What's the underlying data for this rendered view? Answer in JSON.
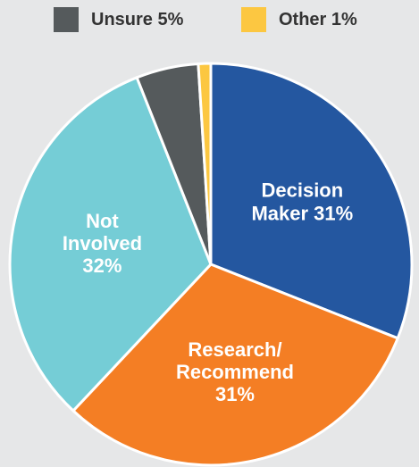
{
  "chart_data": {
    "type": "pie",
    "categories": [
      "Decision Maker",
      "Research/ Recommend",
      "Not Involved",
      "Unsure",
      "Other"
    ],
    "values": [
      31,
      31,
      32,
      5,
      1
    ],
    "value_labels": [
      "31%",
      "31%",
      "32%",
      "5%",
      "1%"
    ],
    "colors": [
      "#2457a0",
      "#f47e24",
      "#75cdd6",
      "#555a5c",
      "#fcc741"
    ],
    "legend": "top"
  }
}
